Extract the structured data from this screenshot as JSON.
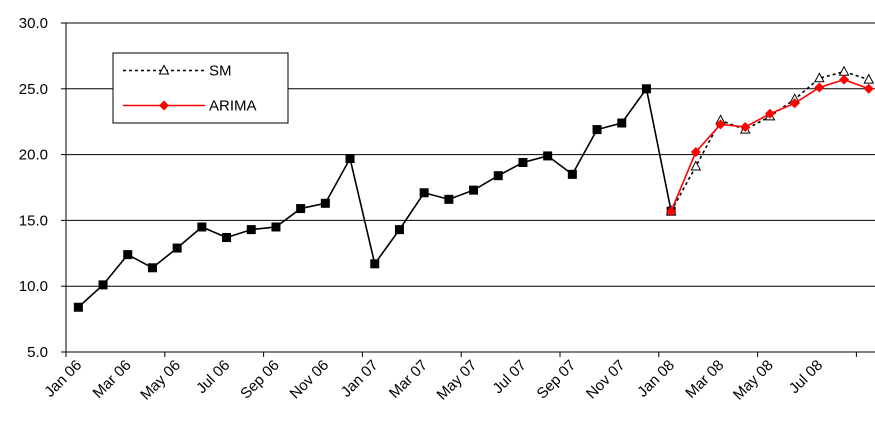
{
  "chart_data": {
    "type": "line",
    "categories": [
      "Jan 06",
      null,
      "Mar 06",
      null,
      "May 06",
      null,
      "Jul 06",
      null,
      "Sep 06",
      null,
      "Nov 06",
      null,
      "Jan 07",
      null,
      "Mar 07",
      null,
      "May 07",
      null,
      "Jul 07",
      null,
      "Sep 07",
      null,
      "Nov 07",
      null,
      "Jan 08",
      null,
      "Mar 08",
      null,
      "May 08",
      null,
      "Jul 08",
      null,
      null
    ],
    "series": [
      {
        "color": "#000000",
        "marker": "square",
        "dash": "solid",
        "values": [
          8.4,
          10.1,
          12.4,
          11.4,
          12.9,
          14.5,
          13.7,
          14.3,
          14.5,
          15.9,
          16.3,
          19.7,
          11.7,
          14.3,
          17.1,
          16.6,
          17.3,
          18.4,
          19.4,
          19.9,
          18.5,
          21.9,
          22.4,
          25.0,
          15.7,
          null,
          null,
          null,
          null,
          null,
          null,
          null,
          null
        ]
      },
      {
        "name": "SM",
        "color": "#000000",
        "marker": "triangle",
        "dash": "dotted",
        "values": [
          null,
          null,
          null,
          null,
          null,
          null,
          null,
          null,
          null,
          null,
          null,
          null,
          null,
          null,
          null,
          null,
          null,
          null,
          null,
          null,
          null,
          null,
          null,
          null,
          15.7,
          19.1,
          22.6,
          21.9,
          22.9,
          24.2,
          25.8,
          26.3,
          25.7
        ]
      },
      {
        "name": "ARIMA",
        "color": "#ff0000",
        "marker": "diamond",
        "dash": "solid",
        "values": [
          null,
          null,
          null,
          null,
          null,
          null,
          null,
          null,
          null,
          null,
          null,
          null,
          null,
          null,
          null,
          null,
          null,
          null,
          null,
          null,
          null,
          null,
          null,
          null,
          15.7,
          20.2,
          22.3,
          22.1,
          23.1,
          23.9,
          25.1,
          25.7,
          25.0
        ]
      }
    ],
    "ylim": [
      5.0,
      30.0
    ],
    "yticks": [
      {
        "value": 5,
        "label": "5.0"
      },
      {
        "value": 10,
        "label": "10.0"
      },
      {
        "value": 15,
        "label": "15.0"
      },
      {
        "value": 20,
        "label": "20.0"
      },
      {
        "value": 25,
        "label": "25.0"
      },
      {
        "value": 30,
        "label": "30.0"
      }
    ],
    "grid": true,
    "legend": "upper left"
  }
}
